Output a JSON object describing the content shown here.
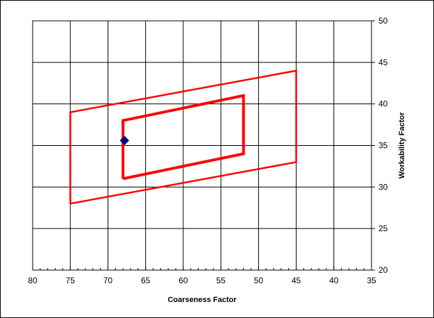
{
  "chart_data": {
    "type": "line",
    "title": "",
    "xlabel": "Coarseness Factor",
    "ylabel": "Workability Factor",
    "xlim": [
      80,
      35
    ],
    "ylim": [
      20,
      50
    ],
    "x_reversed": true,
    "y_axis_side": "right",
    "grid": true,
    "legend": "none",
    "x_ticks": [
      80,
      75,
      70,
      65,
      60,
      55,
      50,
      45,
      40,
      35
    ],
    "y_ticks": [
      20,
      25,
      30,
      35,
      40,
      45,
      50
    ],
    "series": [
      {
        "type": "line",
        "color": "#ff0000",
        "width": "thin",
        "points": [
          [
            75,
            28
          ],
          [
            75,
            39
          ],
          [
            45,
            44
          ],
          [
            45,
            33
          ],
          [
            75,
            28
          ]
        ]
      },
      {
        "type": "line",
        "color": "#ff0000",
        "width": "thick",
        "points": [
          [
            68,
            31
          ],
          [
            68,
            38
          ],
          [
            52,
            41
          ],
          [
            52,
            34
          ],
          [
            68,
            31
          ]
        ]
      },
      {
        "type": "scatter",
        "color": "#000080",
        "marker": "diamond",
        "points": [
          [
            67.8,
            35.6
          ]
        ]
      }
    ]
  }
}
